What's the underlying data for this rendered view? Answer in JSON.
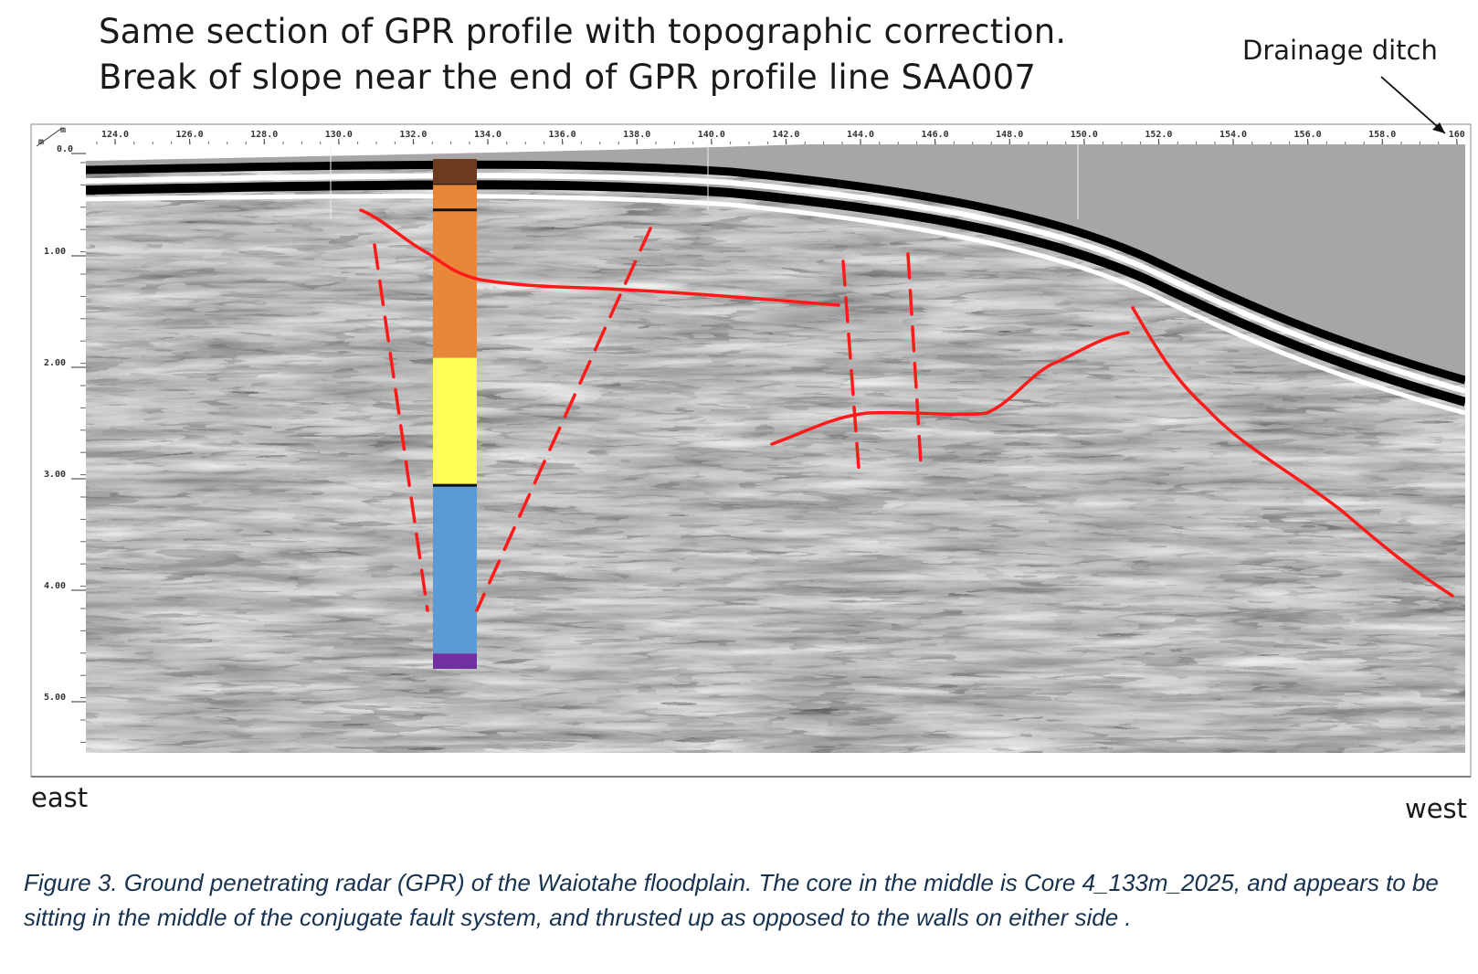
{
  "title": {
    "line1": "Same section of GPR profile with topographic correction.",
    "line2": "Break of slope near the end of GPR profile line SAA007"
  },
  "annotation": {
    "drainage_ditch": "Drainage ditch"
  },
  "orientation": {
    "left": "east",
    "right": "west"
  },
  "axes": {
    "unit_x": "m",
    "unit_y": "m",
    "x_ticks": [
      "124.0",
      "126.0",
      "128.0",
      "130.0",
      "132.0",
      "134.0",
      "136.0",
      "138.0",
      "140.0",
      "142.0",
      "144.0",
      "146.0",
      "148.0",
      "150.0",
      "152.0",
      "154.0",
      "156.0",
      "158.0",
      "160"
    ],
    "y_ticks": [
      "0.0",
      "1.00",
      "2.00",
      "3.00",
      "4.00",
      "5.00"
    ]
  },
  "core_units": [
    {
      "color": "#6b3a1f",
      "from": 0.0,
      "to": 0.05
    },
    {
      "color": "#e8863a",
      "from": 0.05,
      "to": 0.1
    },
    {
      "color": "#e8863a",
      "from": 0.1,
      "to": 0.39
    },
    {
      "color": "#ffff55",
      "from": 0.39,
      "to": 0.64
    },
    {
      "color": "#5b9bd5",
      "from": 0.64,
      "to": 0.97
    },
    {
      "color": "#7030a0",
      "from": 0.97,
      "to": 1.0
    }
  ],
  "colors": {
    "interpretation_line": "#ff1a1a",
    "air_fill": "#a6a6a6"
  },
  "caption": "Figure 3. Ground penetrating radar (GPR) of the Waiotahe floodplain. The core in the middle is Core 4_133m_2025, and appears to be sitting in the middle of the conjugate fault system, and thrusted up as opposed to the walls on either side ."
}
